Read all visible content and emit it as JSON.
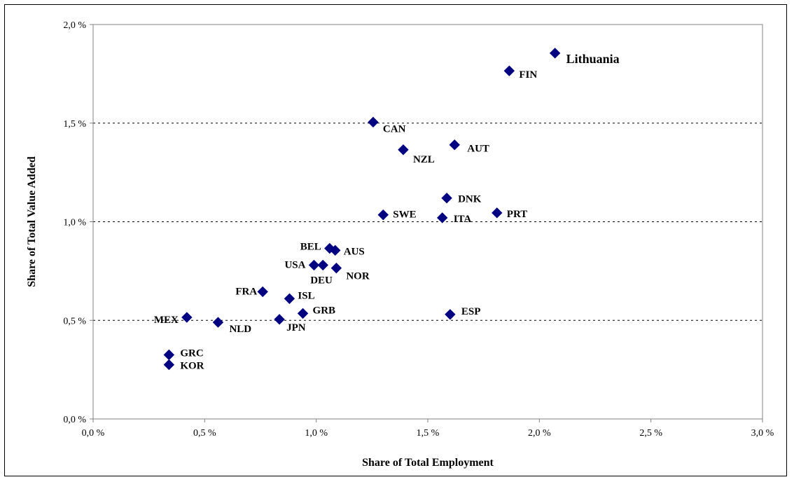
{
  "chart_data": {
    "type": "scatter",
    "xlabel": "Share of Total Employment",
    "ylabel": "Share of Total Value Added",
    "xlim": [
      0,
      3.0
    ],
    "ylim": [
      0,
      2.0
    ],
    "x_ticks": [
      "0,0 %",
      "0,5 %",
      "1,0 %",
      "1,5 %",
      "2,0 %",
      "2,5 %",
      "3,0 %"
    ],
    "y_ticks": [
      "0,0 %",
      "0,5 %",
      "1,0 %",
      "1,5 %",
      "2,0 %"
    ],
    "y_tick_values": [
      0,
      0.5,
      1.0,
      1.5,
      2.0
    ],
    "x_tick_values": [
      0,
      0.5,
      1.0,
      1.5,
      2.0,
      2.5,
      3.0
    ],
    "grid": "horizontal-dashed",
    "marker_color": "#000080",
    "points": [
      {
        "label": "Lithuania",
        "x": 2.07,
        "y": 1.855,
        "emphasis": true
      },
      {
        "label": "FIN",
        "x": 1.865,
        "y": 1.765
      },
      {
        "label": "CAN",
        "x": 1.255,
        "y": 1.505
      },
      {
        "label": "AUT",
        "x": 1.62,
        "y": 1.39
      },
      {
        "label": "NZL",
        "x": 1.39,
        "y": 1.365
      },
      {
        "label": "DNK",
        "x": 1.585,
        "y": 1.12
      },
      {
        "label": "PRT",
        "x": 1.81,
        "y": 1.045
      },
      {
        "label": "SWE",
        "x": 1.3,
        "y": 1.035
      },
      {
        "label": "ITA",
        "x": 1.565,
        "y": 1.02
      },
      {
        "label": "BEL",
        "x": 1.06,
        "y": 0.865
      },
      {
        "label": "AUS",
        "x": 1.085,
        "y": 0.855
      },
      {
        "label": "USA",
        "x": 0.99,
        "y": 0.78
      },
      {
        "label": "DEU",
        "x": 1.03,
        "y": 0.78
      },
      {
        "label": "NOR",
        "x": 1.09,
        "y": 0.765
      },
      {
        "label": "FRA",
        "x": 0.76,
        "y": 0.645
      },
      {
        "label": "ISL",
        "x": 0.88,
        "y": 0.61
      },
      {
        "label": "GRB",
        "x": 0.94,
        "y": 0.535
      },
      {
        "label": "MEX",
        "x": 0.42,
        "y": 0.515
      },
      {
        "label": "JPN",
        "x": 0.835,
        "y": 0.505
      },
      {
        "label": "NLD",
        "x": 0.56,
        "y": 0.49
      },
      {
        "label": "ESP",
        "x": 1.6,
        "y": 0.53
      },
      {
        "label": "GRC",
        "x": 0.34,
        "y": 0.325
      },
      {
        "label": "KOR",
        "x": 0.34,
        "y": 0.275
      }
    ]
  }
}
